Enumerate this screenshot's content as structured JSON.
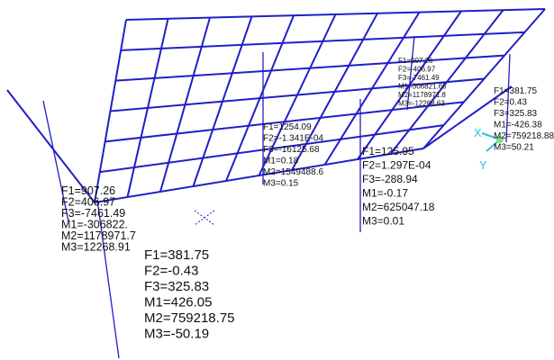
{
  "axes": {
    "x": "X",
    "y": "Y"
  },
  "reactions": [
    {
      "lines": [
        "F1=907.26",
        "F2=406.97",
        "F3=-7461.49",
        "M1=-306822.",
        "M2=1178971.7",
        "M3=12268.91"
      ]
    },
    {
      "lines": [
        "F1=381.75",
        "F2=-0.43",
        "F3=325.83",
        "M1=426.05",
        "M2=759218.75",
        "M3=-50.19"
      ]
    },
    {
      "lines": [
        "F1=1254.09",
        "F2=-1.341E-04",
        "F3=-16125.68",
        "M1=0.18",
        "M2=1549488.6",
        "M3=0.15"
      ]
    },
    {
      "lines": [
        "F1=125.95",
        "F2=1.297E-04",
        "F3=-288.94",
        "M1=-0.17",
        "M2=625047.18",
        "M3=0.01"
      ]
    },
    {
      "lines": [
        "F1=907.26",
        "F2=-406.97",
        "F3=-7461.49",
        "M1=306821.65",
        "M2=1178971.8",
        "M3=-12268.63"
      ]
    },
    {
      "lines": [
        "F1=381.75",
        "F2=0.43",
        "F3=325.83",
        "M1=-426.38",
        "M2=759218.88",
        "M3=50.21"
      ]
    }
  ]
}
